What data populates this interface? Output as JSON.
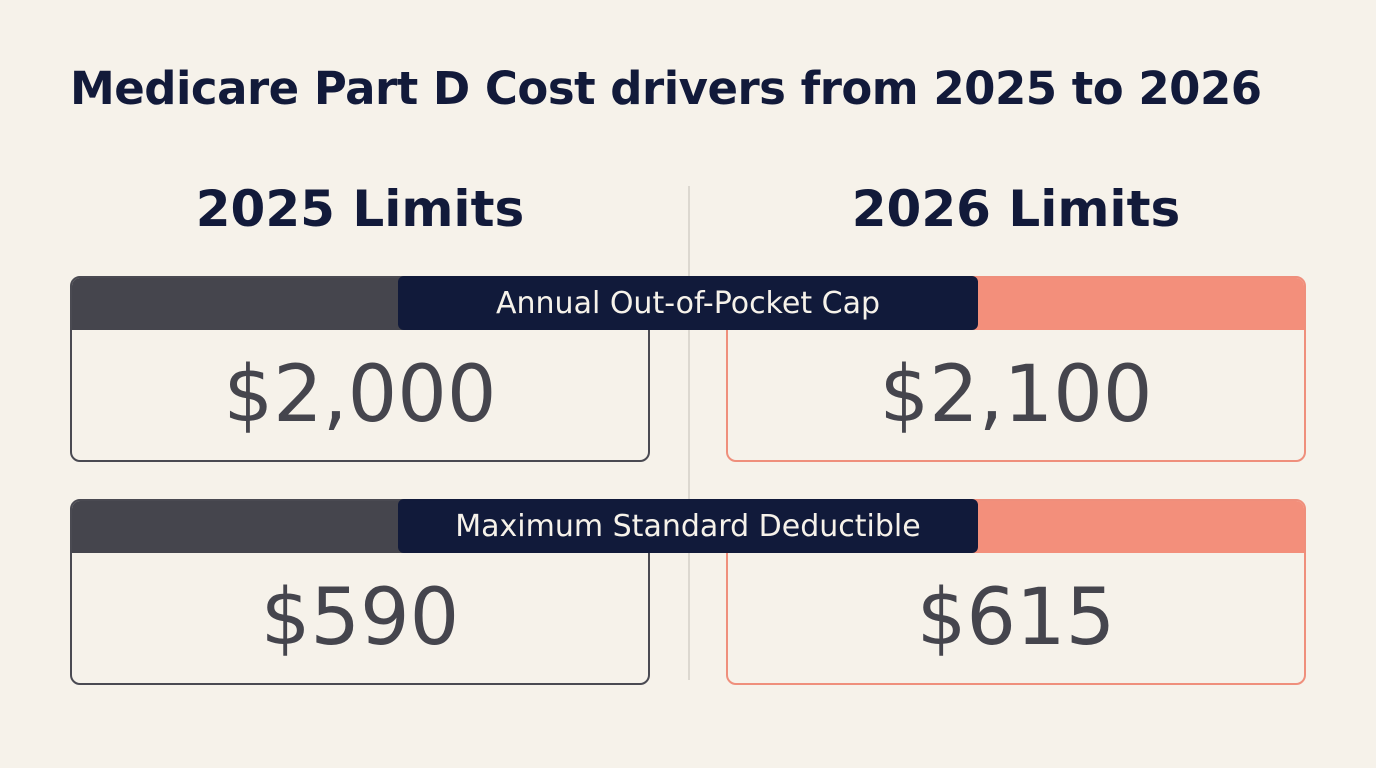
{
  "title": "Medicare Part D Cost drivers from 2025 to 2026",
  "columns": {
    "left_heading": "2025 Limits",
    "right_heading": "2026 Limits"
  },
  "rows": [
    {
      "label": "Annual Out-of-Pocket Cap",
      "value_2025": "$2,000",
      "value_2026": "$2,100"
    },
    {
      "label": "Maximum Standard Deductible",
      "value_2025": "$590",
      "value_2026": "$615"
    }
  ],
  "colors": {
    "background": "#f6f2ea",
    "navy": "#111a3a",
    "charcoal": "#45454d",
    "coral": "#f38f7b"
  }
}
